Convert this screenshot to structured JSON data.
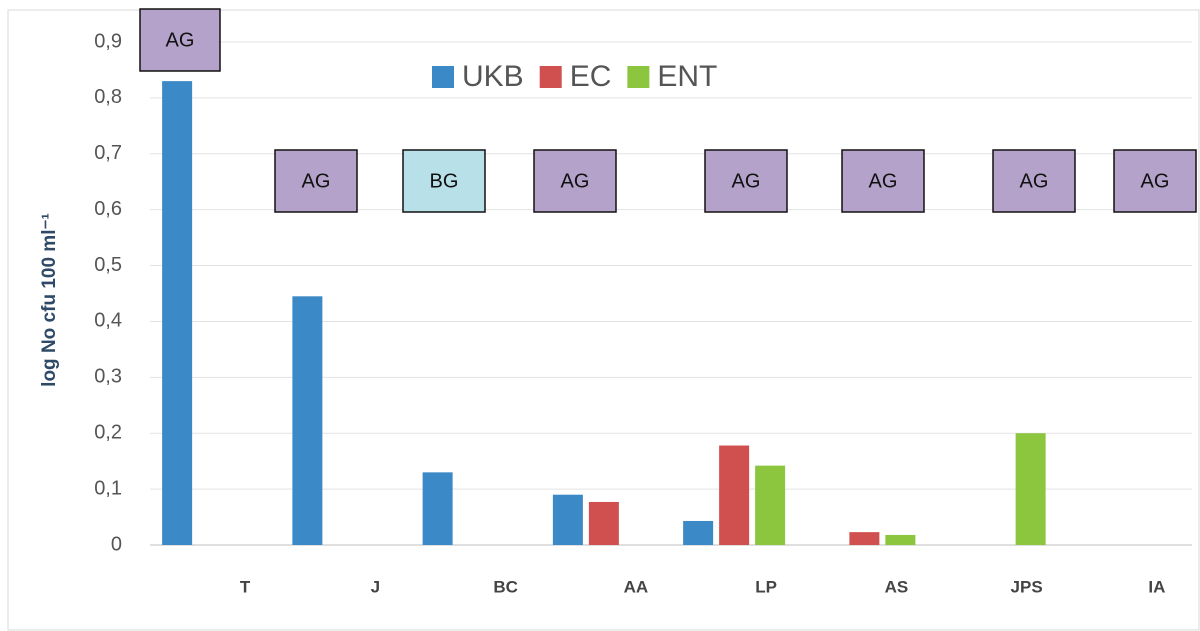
{
  "chart_data": {
    "type": "bar",
    "y_axis_label": "log No cfu 100 ml⁻¹",
    "categories": [
      "T",
      "J",
      "BC",
      "AA",
      "LP",
      "AS",
      "JPS",
      "IA"
    ],
    "series": [
      {
        "name": "UKB",
        "color": "#3b89c6",
        "values": [
          0.83,
          0.445,
          0.13,
          0.09,
          0.043,
          0,
          0,
          0
        ]
      },
      {
        "name": "EC",
        "color": "#d0504f",
        "values": [
          0,
          0,
          0,
          0.077,
          0.178,
          0.023,
          0,
          0
        ]
      },
      {
        "name": "ENT",
        "color": "#8cc63f",
        "values": [
          0,
          0,
          0,
          0,
          0.142,
          0.018,
          0.2,
          0
        ]
      }
    ],
    "box_labels": [
      "AG",
      "AG",
      "BG",
      "AG",
      "AG",
      "AG",
      "AG",
      "AG"
    ],
    "box_colors": {
      "AG": "#b4a2ca",
      "BG": "#b8e0e8"
    },
    "ylim": [
      0,
      0.9
    ],
    "yticks": [
      0,
      {
        "value": 0.1,
        "label": "0,1"
      },
      {
        "value": 0.2,
        "label": "0,2"
      },
      {
        "value": 0.3,
        "label": "0,3"
      },
      {
        "value": 0.4,
        "label": "0,4"
      },
      {
        "value": 0.5,
        "label": "0,5"
      },
      {
        "value": 0.6,
        "label": "0,6"
      },
      {
        "value": 0.7,
        "label": "0,7"
      },
      {
        "value": 0.8,
        "label": "0,8"
      },
      {
        "value": 0.9,
        "label": "0,9"
      }
    ],
    "grid": true
  }
}
